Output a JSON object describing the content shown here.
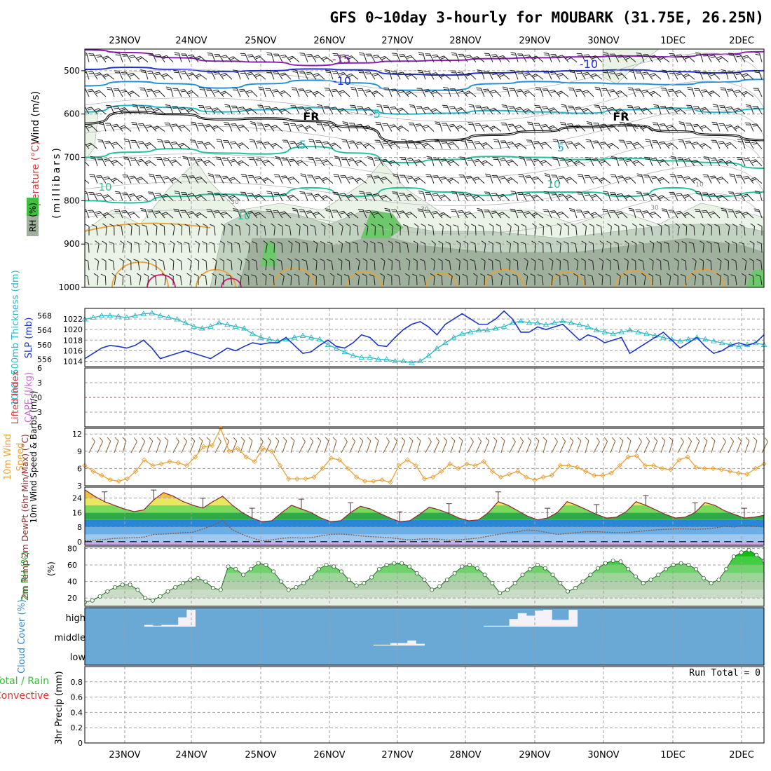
{
  "title": "GFS 0~10day 3-hourly for MOUBARK (31.75E, 26.25N)",
  "colors": {
    "fr_line": "#000000",
    "temp_pos": "#e8a23a",
    "temp_neg_5": "#21b9c8",
    "temp_neg_10": "#1f8fd8",
    "temp_neg_15": "#8a1fb4",
    "temp_neg_10b": "#2030c8",
    "temp_pos_10": "#1fc29a",
    "temp_pos_15": "#d4187a",
    "rh_30": "#e9f3e6",
    "rh_70": "#c3d3c1",
    "rh_90": "#9fb19d",
    "rh_high": "#6cc96a",
    "slp": "#1c35c8",
    "thickness": "#2ab8c8",
    "lifted_index": "#d63a3a",
    "wind10m": "#e8a23a",
    "barb10m": "#8b5a2b",
    "cloud_bg": "#6aa9d6",
    "rh2m": "#2ec22e",
    "precip_total": "#2ec22e",
    "precip_conv": "#e03030"
  },
  "chart_data": [
    {
      "type": "heatmap",
      "panel": "upper_air",
      "ylabel": "(millibars)",
      "legend": [
        "Wind (m/s)",
        "Temperature (°C)",
        "RH (%)"
      ],
      "y_ticks": [
        500,
        600,
        700,
        800,
        900,
        1000
      ],
      "ylim": [
        450,
        1000
      ],
      "x_ticks": [
        "23NOV",
        "24NOV",
        "25NOV",
        "26NOV",
        "27NOV",
        "28NOV",
        "29NOV",
        "30NOV",
        "1DEC",
        "2DEC"
      ],
      "contour_labels": [
        "-15",
        "-10",
        "-10",
        "-5",
        "FR",
        "FR",
        "5",
        "5",
        "10",
        "10",
        "10",
        "30",
        "30",
        "30",
        "10",
        "10"
      ],
      "isotherms": [
        {
          "label": "-15",
          "mb": [
            452,
            458,
            470,
            478,
            480,
            488,
            482,
            478,
            476,
            472,
            470,
            468,
            466,
            468,
            462,
            456
          ]
        },
        {
          "label": "-10",
          "mb": [
            497,
            492,
            497,
            502,
            500,
            496,
            498,
            508,
            510,
            505,
            502,
            500,
            498,
            502,
            505,
            500
          ]
        },
        {
          "label": "-10b",
          "mb": [
            535,
            525,
            530,
            540,
            530,
            522,
            528,
            545,
            545,
            530,
            525,
            528,
            530,
            532,
            526,
            520
          ]
        },
        {
          "label": "-5",
          "mb": [
            595,
            580,
            585,
            595,
            590,
            585,
            590,
            600,
            598,
            592,
            595,
            598,
            590,
            586,
            596,
            588
          ]
        },
        {
          "label": "FR",
          "mb": [
            622,
            595,
            600,
            612,
            610,
            616,
            630,
            665,
            660,
            648,
            640,
            630,
            626,
            640,
            648,
            660
          ]
        },
        {
          "label": "5",
          "mb": [
            700,
            688,
            680,
            690,
            692,
            675,
            690,
            712,
            705,
            698,
            700,
            705,
            702,
            708,
            712,
            725
          ]
        },
        {
          "label": "10",
          "mb": [
            800,
            805,
            790,
            785,
            790,
            770,
            790,
            770,
            780,
            788,
            780,
            780,
            790,
            770,
            790,
            780
          ]
        }
      ],
      "rh_levels": [
        10,
        30,
        70,
        90
      ]
    },
    {
      "type": "line",
      "panel": "slp_thickness",
      "series": [
        {
          "name": "1000~500mb Thickness (dm)",
          "axis": "left",
          "values": [
            567,
            567.5,
            568,
            568,
            567.8,
            567.5,
            568,
            568.5,
            568.7,
            568,
            567.5,
            567,
            566,
            565,
            564.5,
            565,
            566,
            565.5,
            565,
            564.5,
            563,
            562,
            561.5,
            561,
            561.5,
            562,
            562.5,
            562,
            561.5,
            560,
            559,
            558,
            557,
            556.5,
            556.5,
            556,
            556,
            555.5,
            555.5,
            555,
            555.5,
            557,
            559,
            560.5,
            562,
            563,
            563.5,
            564,
            564,
            564.5,
            565,
            566,
            566.5,
            566,
            566,
            565.5,
            566,
            566.5,
            566,
            565.5,
            565,
            564,
            563.5,
            563,
            563.5,
            564,
            563.5,
            563,
            562.5,
            562,
            561.5,
            561,
            561.5,
            562,
            561.5,
            561,
            560.5,
            560,
            559.5,
            560,
            560.5,
            560
          ]
        },
        {
          "name": "SLP (mb)",
          "axis": "right",
          "values": [
            1014.5,
            1015.5,
            1016.5,
            1017,
            1016.8,
            1016.5,
            1017,
            1018,
            1016.5,
            1014.5,
            1015,
            1015.5,
            1016,
            1015.5,
            1015,
            1014.5,
            1015.5,
            1016.5,
            1016,
            1016.8,
            1017.5,
            1017.2,
            1017.5,
            1017.5,
            1018.5,
            1017,
            1015.5,
            1015.8,
            1017,
            1018,
            1016.8,
            1016.5,
            1017.5,
            1019,
            1018.5,
            1017,
            1016.8,
            1018.5,
            1020,
            1021,
            1021.5,
            1020.5,
            1019,
            1021,
            1022,
            1023,
            1022,
            1021,
            1021,
            1022,
            1023.5,
            1022,
            1019.5,
            1019.5,
            1020.5,
            1020,
            1020.5,
            1021,
            1019.5,
            1018,
            1019,
            1018.5,
            1017.5,
            1018,
            1018.5,
            1015.5,
            1016.5,
            1017.5,
            1018.5,
            1019.5,
            1018,
            1016.5,
            1017.5,
            1018.5,
            1016.8,
            1015.5,
            1016,
            1017,
            1017.5,
            1017,
            1017.5,
            1019
          ]
        }
      ],
      "left_ticks": [
        556,
        560,
        564,
        568
      ],
      "right_ticks": [
        1014,
        1016,
        1018,
        1020,
        1022
      ],
      "ylabel_left": "1000~500mb Thickness (dm)",
      "ylabel_right": "SLP (mb)",
      "ylim_left": [
        554,
        570
      ],
      "ylim_right": [
        1013,
        1024
      ]
    },
    {
      "type": "line",
      "panel": "cape_li",
      "ylabel_left": "Lifted Index",
      "ylabel_right": "CAPE (J/kg)",
      "ticks": [
        6,
        3,
        0,
        -3,
        -6
      ],
      "ylim": [
        -6,
        6
      ],
      "series": [
        {
          "name": "Lifted Index",
          "values": [
            0
          ]
        }
      ]
    },
    {
      "type": "line",
      "panel": "wind10m",
      "ylabel": "10m Wind Speed & Barbs (m/s)",
      "ticks": [
        3,
        6,
        9,
        12
      ],
      "ylim": [
        3,
        13
      ],
      "series": [
        {
          "name": "10m Wind Speed",
          "values": [
            6.5,
            5.5,
            4.8,
            4.0,
            3.8,
            4.2,
            5.5,
            7.5,
            6.5,
            6.8,
            7.2,
            7.0,
            6.5,
            8.0,
            9.8,
            10.0,
            13.0,
            9.0,
            9.5,
            8.0,
            7.2,
            9.5,
            9.0,
            6.5,
            4.2,
            4.2,
            4.2,
            4.5,
            6.0,
            7.8,
            7.5,
            6.0,
            4.5,
            3.8,
            3.8,
            4.0,
            3.6,
            6.5,
            7.5,
            6.5,
            4.2,
            4.5,
            5.5,
            6.8,
            6.0,
            6.8,
            6.5,
            7.2,
            5.5,
            4.5,
            5.0,
            5.5,
            4.5,
            4.0,
            4.5,
            4.8,
            6.5,
            6.5,
            6.2,
            5.5,
            4.8,
            4.8,
            5.2,
            6.5,
            8.0,
            8.2,
            6.5,
            6.5,
            6.0,
            5.8,
            7.5,
            8.0,
            6.2,
            6.0,
            6.0,
            5.8,
            5.5,
            5.2,
            5.0,
            6.0,
            6.8
          ]
        }
      ]
    },
    {
      "type": "area",
      "panel": "temp2m",
      "ylabel": "2m Temp 2m DewPt (6hr Min/Max) (°C)",
      "ticks": [
        0,
        8,
        16,
        24
      ],
      "ylim": [
        -2,
        30
      ],
      "series": [
        {
          "name": "2m Temp",
          "values": [
            28.5,
            25,
            22,
            20,
            18,
            16.5,
            17.5,
            23,
            27,
            25,
            22,
            20,
            18.5,
            22,
            25,
            20,
            16,
            13,
            11,
            11.5,
            16,
            20,
            18,
            16,
            13,
            11,
            11.5,
            16,
            19.5,
            18,
            15.5,
            13,
            11,
            11.5,
            15,
            19,
            17.5,
            15.5,
            13,
            11.5,
            12,
            16,
            22,
            20,
            17,
            14,
            12,
            13,
            16,
            22,
            20,
            17.5,
            15,
            13,
            13.5,
            16.5,
            22,
            20,
            17.5,
            15,
            13,
            13.5,
            16,
            21.5,
            20,
            17,
            15,
            13,
            13.5,
            14.5
          ]
        },
        {
          "name": "2m DewPt",
          "values": [
            0.5,
            0.8,
            1.2,
            1.8,
            2.0,
            2.2,
            2.5,
            4.0,
            4.2,
            4.5,
            5.0,
            5.2,
            7.0,
            9.0,
            11.5,
            6.5,
            4.0,
            2.0,
            0.5,
            1.0,
            1.8,
            2.2,
            2.0,
            2.2,
            3.2,
            4.0,
            4.2,
            3.8,
            3.2,
            2.8,
            2.5,
            2.2,
            1.5,
            1.0,
            1.4,
            1.6,
            1.4,
            0.8,
            1.0,
            1.5,
            2.0,
            3.0,
            4.0,
            5.0,
            5.5,
            6.5,
            6.0,
            5.0,
            4.0,
            4.5,
            5.0,
            5.5,
            5.5,
            5.2,
            5.0,
            5.0,
            5.5,
            6.0,
            6.5,
            6.8,
            7.0,
            7.0,
            6.8,
            7.0,
            7.5,
            8.5,
            8.0,
            9.0,
            8.5,
            8.0
          ]
        }
      ]
    },
    {
      "type": "area",
      "panel": "rh2m",
      "ylabel": "2m RH (%)",
      "ticks": [
        20,
        40,
        60,
        80
      ],
      "ylim": [
        10,
        82
      ],
      "series": [
        {
          "name": "2m RH",
          "values": [
            15,
            17,
            22,
            28,
            33,
            36,
            36,
            30,
            20,
            17,
            22,
            28,
            33,
            38,
            42,
            44,
            40,
            32,
            30,
            58,
            55,
            48,
            55,
            62,
            60,
            52,
            40,
            30,
            33,
            38,
            45,
            55,
            60,
            58,
            52,
            42,
            35,
            38,
            45,
            55,
            60,
            62,
            62,
            58,
            50,
            42,
            30,
            34,
            42,
            50,
            58,
            60,
            56,
            48,
            38,
            26,
            30,
            38,
            48,
            55,
            60,
            56,
            48,
            38,
            28,
            32,
            40,
            48,
            56,
            62,
            65,
            64,
            55,
            46,
            38,
            42,
            48,
            55,
            60,
            62,
            60,
            55,
            44,
            38,
            42,
            55,
            70,
            75,
            78,
            72,
            65
          ]
        }
      ]
    },
    {
      "type": "bar",
      "panel": "cloud",
      "ylabel": "Cloud Cover (%)",
      "levels": [
        "high",
        "middle",
        "low"
      ],
      "high_values": [
        0,
        0,
        0,
        0,
        0,
        0,
        0,
        10,
        5,
        10,
        10,
        55,
        100,
        0,
        0,
        0,
        0,
        0,
        0,
        0,
        0,
        0,
        0,
        0,
        0,
        0,
        0,
        0,
        0,
        0,
        0,
        0,
        0,
        0,
        0,
        0,
        0,
        0,
        0,
        0,
        0,
        0,
        0,
        0,
        0,
        0,
        0,
        5,
        5,
        5,
        45,
        80,
        65,
        95,
        100,
        40,
        40,
        100,
        0,
        0,
        0,
        0,
        0,
        0,
        0,
        0,
        0,
        0,
        0,
        0,
        0,
        0,
        0,
        0,
        0,
        0,
        0,
        0,
        0,
        0
      ],
      "middle_values": [
        0,
        0,
        0,
        0,
        0,
        0,
        0,
        0,
        0,
        0,
        0,
        0,
        0,
        0,
        0,
        0,
        0,
        0,
        0,
        0,
        0,
        0,
        0,
        0,
        0,
        0,
        0,
        0,
        0,
        0,
        0,
        0,
        0,
        0,
        5,
        5,
        15,
        15,
        30,
        10,
        0,
        0,
        0,
        0,
        0,
        0,
        0,
        0,
        0,
        0,
        0,
        0,
        0,
        0,
        0,
        0,
        0,
        0,
        0,
        0,
        0,
        0,
        0,
        0,
        0,
        0,
        0,
        0,
        0,
        0,
        0,
        0,
        0,
        0,
        0,
        0,
        0,
        0,
        0,
        0
      ],
      "low_values": [
        0
      ]
    },
    {
      "type": "bar",
      "panel": "precip",
      "ylabel": "3hr Precip (mm)",
      "legend": [
        "Total / Rain",
        "Convective"
      ],
      "ticks": [
        0,
        0.2,
        0.4,
        0.6,
        0.8
      ],
      "ylim": [
        0,
        1.0
      ],
      "values": [
        0
      ],
      "annotation": "Run Total = 0"
    }
  ]
}
